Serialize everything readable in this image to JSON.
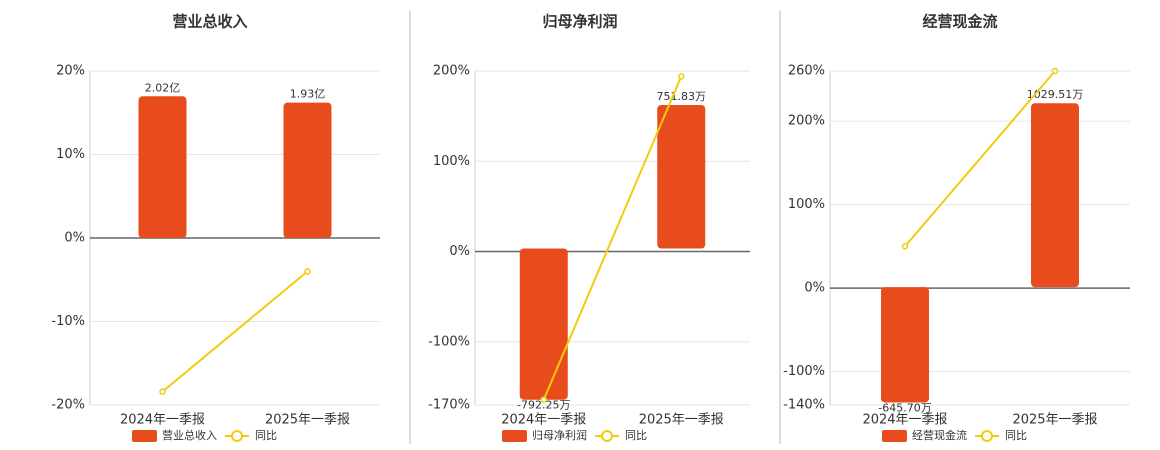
{
  "chart_data": [
    {
      "type": "bar",
      "title": "营业总收入",
      "categories": [
        "2024年一季报",
        "2025年一季报"
      ],
      "series": [
        {
          "name": "营业总收入",
          "color": "#e84c1c",
          "values": [
            2.02,
            1.93
          ],
          "value_labels": [
            "2.02亿",
            "1.93亿"
          ],
          "axis": "y2"
        },
        {
          "name": "同比",
          "type": "line",
          "color": "#f2cc0c",
          "values": [
            -18.4,
            -4.0
          ]
        }
      ],
      "ylim": [
        -20,
        20
      ],
      "yticks": [
        {
          "value": 20,
          "label": "20%"
        },
        {
          "value": 10,
          "label": "10%"
        },
        {
          "value": 0,
          "label": "0%"
        },
        {
          "value": -10,
          "label": "-10%"
        },
        {
          "value": -20,
          "label": "-20%"
        }
      ],
      "y2lim": [
        -2.38,
        2.38
      ],
      "grid": true
    },
    {
      "type": "bar",
      "title": "归母净利润",
      "categories": [
        "2024年一季报",
        "2025年一季报"
      ],
      "series": [
        {
          "name": "归母净利润",
          "color": "#e84c1c",
          "values": [
            -792.25,
            751.83
          ],
          "value_labels": [
            "-792.25万",
            "751.83万"
          ],
          "axis": "y2"
        },
        {
          "name": "同比",
          "type": "line",
          "color": "#f2cc0c",
          "values": [
            -164,
            194
          ]
        }
      ],
      "ylim": [
        -170,
        200
      ],
      "yticks": [
        {
          "value": 200,
          "label": "200%"
        },
        {
          "value": 100,
          "label": "100%"
        },
        {
          "value": 0,
          "label": "0%"
        },
        {
          "value": -100,
          "label": "-100%"
        },
        {
          "value": -170,
          "label": "-170%"
        }
      ],
      "y2lim": [
        -820,
        930
      ],
      "grid": true
    },
    {
      "type": "bar",
      "title": "经营现金流",
      "categories": [
        "2024年一季报",
        "2025年一季报"
      ],
      "series": [
        {
          "name": "经营现金流",
          "color": "#e84c1c",
          "values": [
            -645.7,
            1029.51
          ],
          "value_labels": [
            "-645.70万",
            "1029.51万"
          ],
          "axis": "y2"
        },
        {
          "name": "同比",
          "type": "line",
          "color": "#f2cc0c",
          "values": [
            50,
            260
          ]
        }
      ],
      "ylim": [
        -140,
        260
      ],
      "yticks": [
        {
          "value": 260,
          "label": "260%"
        },
        {
          "value": 200,
          "label": "200%"
        },
        {
          "value": 100,
          "label": "100%"
        },
        {
          "value": 0,
          "label": "0%"
        },
        {
          "value": -100,
          "label": "-100%"
        },
        {
          "value": -140,
          "label": "-140%"
        }
      ],
      "y2lim": [
        -660,
        1210
      ],
      "grid": true
    }
  ]
}
